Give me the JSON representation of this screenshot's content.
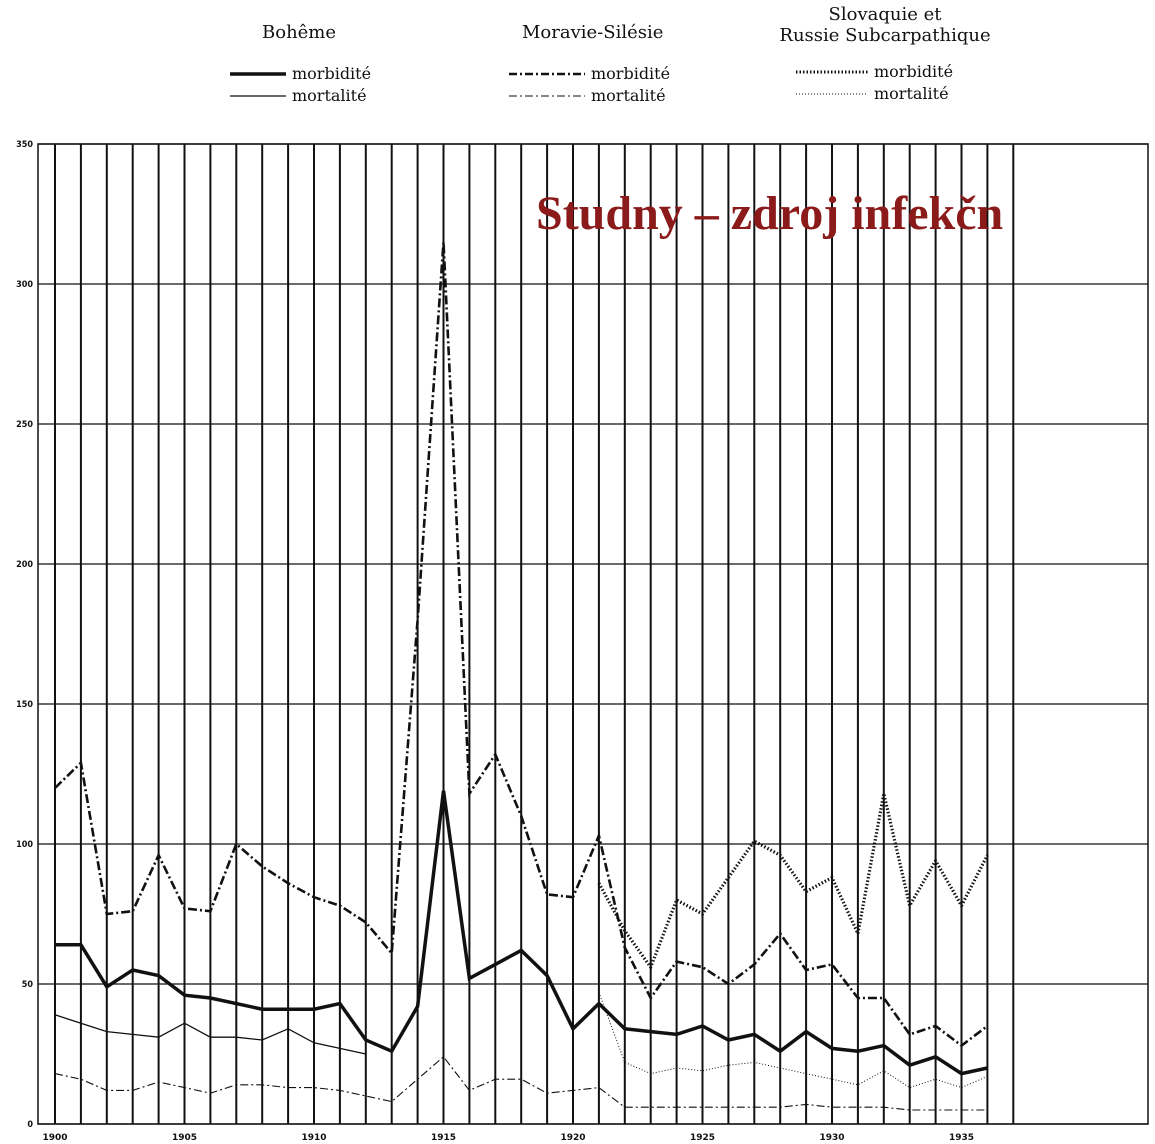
{
  "legend": {
    "groups": [
      {
        "name": "Bohême",
        "morb_label": "morbidité",
        "mort_label": "mortalité"
      },
      {
        "name": "Moravie-Silésie",
        "morb_label": "morbidité",
        "mort_label": "mortalité"
      },
      {
        "name_line1": "Slovaquie et",
        "name_line2": "Russie Subcarpathique",
        "morb_label": "morbidité",
        "mort_label": "mortalité"
      }
    ]
  },
  "overlay_text": "Studny – zdroj infekčn",
  "chart_data": {
    "type": "line",
    "title": "",
    "xlabel": "",
    "ylabel": "",
    "xlim": [
      1900,
      1937
    ],
    "ylim": [
      0,
      350
    ],
    "y_ticks": [
      "0",
      "50",
      "100",
      "150",
      "200",
      "250",
      "300",
      "350"
    ],
    "x_ticks": [
      {
        "value": 1900,
        "label": "1900"
      },
      {
        "value": 1905,
        "label": "1905"
      },
      {
        "value": 1910,
        "label": "1910"
      },
      {
        "value": 1915,
        "label": "1915"
      },
      {
        "value": 1920,
        "label": "1920"
      },
      {
        "value": 1925,
        "label": "1925"
      },
      {
        "value": 1930,
        "label": "1930"
      },
      {
        "value": 1935,
        "label": "1935"
      }
    ],
    "grid": true,
    "series": [
      {
        "name": "Bohême morbidité",
        "style": "solid-thick",
        "x": [
          1900,
          1901,
          1902,
          1903,
          1904,
          1905,
          1906,
          1907,
          1908,
          1909,
          1910,
          1911,
          1912,
          1913,
          1914,
          1915,
          1916,
          1917,
          1918,
          1919,
          1920,
          1921,
          1922,
          1923,
          1924,
          1925,
          1926,
          1927,
          1928,
          1929,
          1930,
          1931,
          1932,
          1933,
          1934,
          1935,
          1936
        ],
        "y": [
          64,
          64,
          49,
          55,
          53,
          46,
          45,
          43,
          41,
          41,
          41,
          43,
          30,
          26,
          42,
          119,
          52,
          57,
          62,
          53,
          34,
          43,
          34,
          33,
          32,
          35,
          30,
          32,
          26,
          33,
          27,
          26,
          28,
          21,
          24,
          18,
          20
        ]
      },
      {
        "name": "Bohême mortalité",
        "style": "solid-thin",
        "x": [
          1900,
          1901,
          1902,
          1903,
          1904,
          1905,
          1906,
          1907,
          1908,
          1909,
          1910,
          1911,
          1912
        ],
        "y": [
          39,
          36,
          33,
          32,
          31,
          36,
          31,
          31,
          30,
          34,
          29,
          27,
          25
        ]
      },
      {
        "name": "Moravie-Silésie morbidité",
        "style": "dash-dot-thick",
        "x": [
          1900,
          1901,
          1902,
          1903,
          1904,
          1905,
          1906,
          1907,
          1908,
          1909,
          1910,
          1911,
          1912,
          1913,
          1914,
          1915,
          1916,
          1917,
          1918,
          1919,
          1920,
          1921,
          1922,
          1923,
          1924,
          1925,
          1926,
          1927,
          1928,
          1929,
          1930,
          1931,
          1932,
          1933,
          1934,
          1935,
          1936
        ],
        "y": [
          120,
          129,
          75,
          76,
          96,
          77,
          76,
          100,
          92,
          86,
          81,
          78,
          72,
          61,
          180,
          315,
          118,
          132,
          110,
          82,
          81,
          103,
          63,
          45,
          58,
          56,
          50,
          57,
          68,
          55,
          57,
          45,
          45,
          32,
          35,
          28,
          35
        ]
      },
      {
        "name": "Moravie-Silésie mortalité",
        "style": "dash-dot-thin",
        "x": [
          1900,
          1901,
          1902,
          1903,
          1904,
          1905,
          1906,
          1907,
          1908,
          1909,
          1910,
          1911,
          1912,
          1913,
          1914,
          1915,
          1916,
          1917,
          1918,
          1919,
          1920,
          1921,
          1922,
          1923,
          1924,
          1925,
          1926,
          1927,
          1928,
          1929,
          1930,
          1931,
          1932,
          1933,
          1934,
          1935,
          1936
        ],
        "y": [
          18,
          16,
          12,
          12,
          15,
          13,
          11,
          14,
          14,
          13,
          13,
          12,
          10,
          8,
          16,
          24,
          12,
          16,
          16,
          11,
          12,
          13,
          6,
          6,
          6,
          6,
          6,
          6,
          6,
          7,
          6,
          6,
          6,
          5,
          5,
          5,
          5
        ]
      },
      {
        "name": "Slovaquie et Russie Subcarpathique morbidité",
        "style": "dotted-thick",
        "x": [
          1921,
          1922,
          1923,
          1924,
          1925,
          1926,
          1927,
          1928,
          1929,
          1930,
          1931,
          1932,
          1933,
          1934,
          1935,
          1936
        ],
        "y": [
          86,
          69,
          56,
          80,
          75,
          88,
          101,
          96,
          83,
          88,
          68,
          118,
          78,
          94,
          78,
          96
        ]
      },
      {
        "name": "Slovaquie et Russie Subcarpathique mortalité",
        "style": "dotted-thin",
        "x": [
          1921,
          1922,
          1923,
          1924,
          1925,
          1926,
          1927,
          1928,
          1929,
          1930,
          1931,
          1932,
          1933,
          1934,
          1935,
          1936
        ],
        "y": [
          47,
          22,
          18,
          20,
          19,
          21,
          22,
          20,
          18,
          16,
          14,
          19,
          13,
          16,
          13,
          17
        ]
      }
    ]
  }
}
